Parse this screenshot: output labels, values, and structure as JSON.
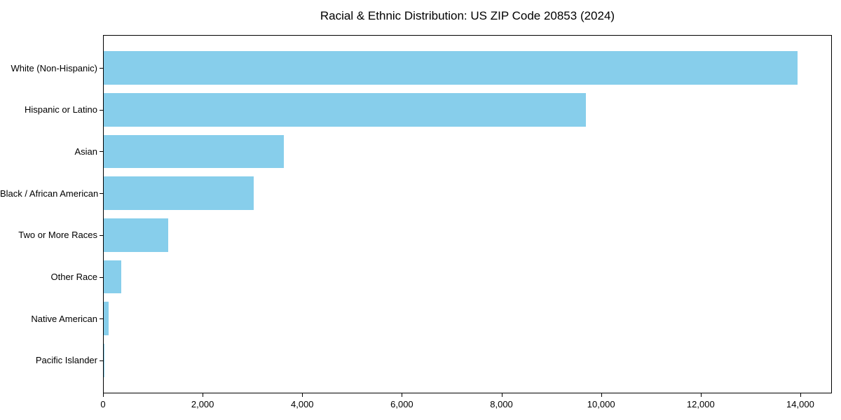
{
  "title": "Racial & Ethnic Distribution: US ZIP Code 20853 (2024)",
  "colors": {
    "bar": "#87CEEB",
    "axis": "#000000",
    "background": "#FFFFFF",
    "text": "#000000"
  },
  "chart_data": {
    "type": "bar",
    "orientation": "horizontal",
    "title": "Racial & Ethnic Distribution: US ZIP Code 20853 (2024)",
    "categories": [
      "White (Non-Hispanic)",
      "Hispanic or Latino",
      "Asian",
      "Black / African American",
      "Two or More Races",
      "Other Race",
      "Native American",
      "Pacific Islander"
    ],
    "values": [
      13930,
      9680,
      3620,
      3010,
      1300,
      345,
      105,
      15
    ],
    "xlabel": "",
    "ylabel": "",
    "xlim": [
      0,
      14634
    ],
    "xticks": [
      0,
      2000,
      4000,
      6000,
      8000,
      10000,
      12000,
      14000
    ],
    "xtick_labels": [
      "0",
      "2,000",
      "4,000",
      "6,000",
      "8,000",
      "10,000",
      "12,000",
      "14,000"
    ],
    "bar_color": "#87CEEB",
    "grid": false,
    "legend": null
  }
}
